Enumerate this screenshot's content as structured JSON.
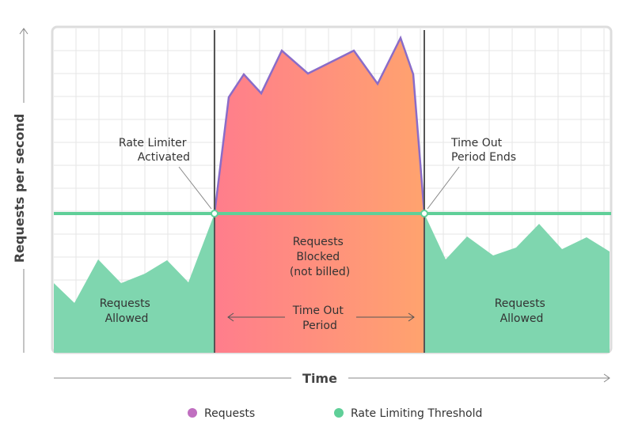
{
  "y_axis_label": "Requests per second",
  "x_axis_label": "Time",
  "annotations": {
    "rate_limiter_activated": [
      "Rate Limiter",
      "Activated"
    ],
    "time_out_period_ends": [
      "Time Out",
      "Period Ends"
    ],
    "requests_blocked": [
      "Requests",
      "Blocked",
      "(not billed)"
    ],
    "time_out_period": [
      "Time Out",
      "Period"
    ],
    "requests_allowed_left": [
      "Requests",
      "Allowed"
    ],
    "requests_allowed_right": [
      "Requests",
      "Allowed"
    ]
  },
  "legend": [
    "Requests",
    "Rate Limiting Threshold"
  ]
}
